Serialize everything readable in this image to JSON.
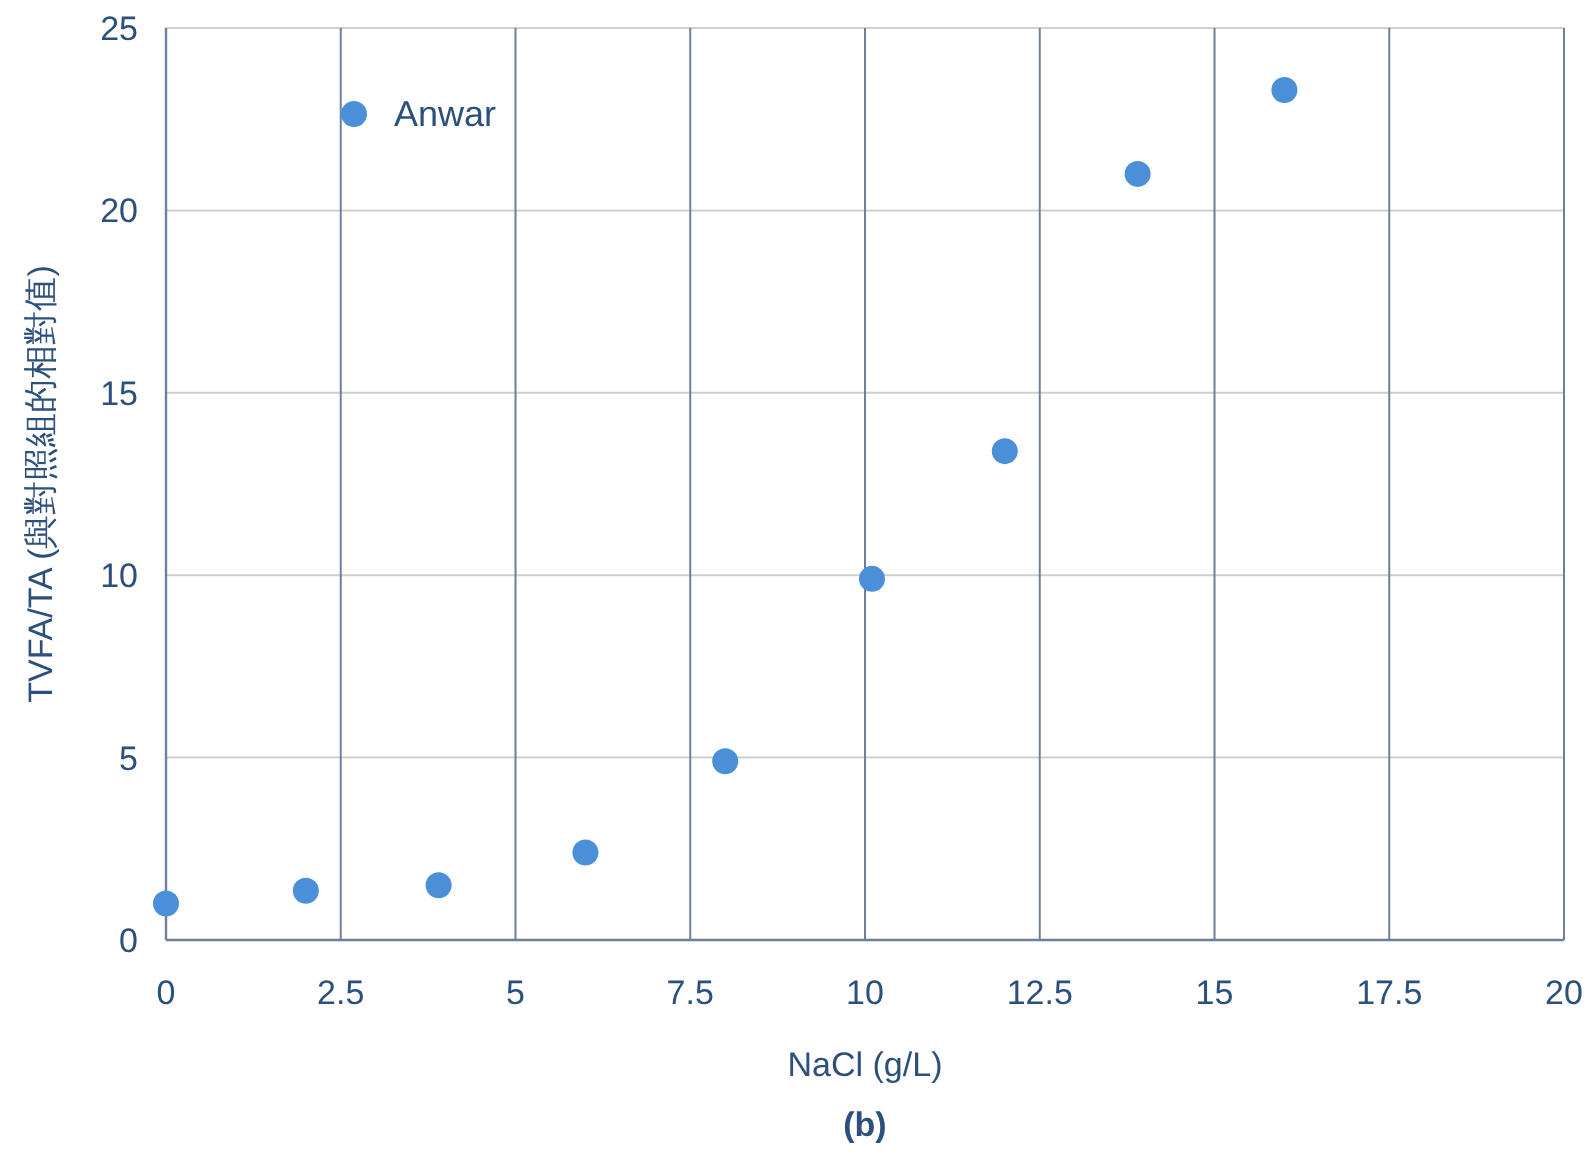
{
  "chart_data": {
    "type": "scatter",
    "xlabel": "NaCl (g/L)",
    "ylabel": "TVFA/TA (與對照組的相對值)",
    "annotations": [
      "(b)"
    ],
    "x": [
      0,
      2,
      3.9,
      6,
      8,
      10.1,
      12,
      13.9,
      16
    ],
    "series": [
      {
        "name": "Anwar",
        "color": "#4a90d9",
        "values": [
          1.0,
          1.35,
          1.5,
          2.4,
          4.9,
          9.9,
          13.4,
          21.0,
          23.3
        ]
      }
    ],
    "xlim": [
      0,
      20
    ],
    "ylim": [
      0,
      25
    ],
    "xticks": [
      0,
      2.5,
      5,
      7.5,
      10,
      12.5,
      15,
      17.5,
      20
    ],
    "yticks": [
      0,
      5,
      10,
      15,
      20,
      25
    ],
    "grid": true,
    "legend": "top left",
    "marker": "circle"
  }
}
